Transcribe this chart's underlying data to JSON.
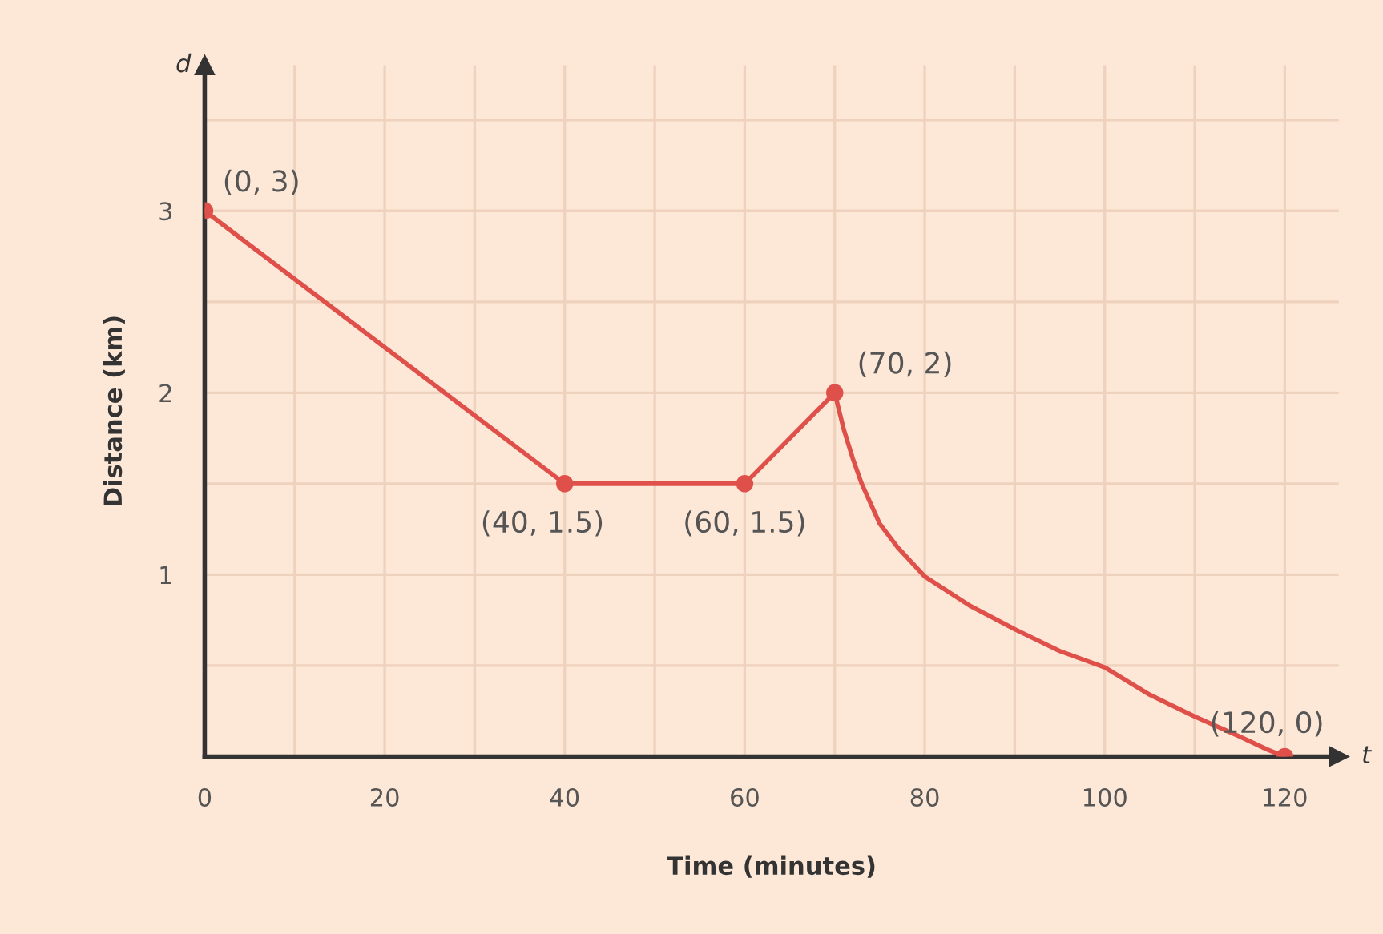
{
  "chart_data": {
    "type": "line",
    "xlabel": "Time (minutes)",
    "ylabel": "Distance (km)",
    "x": [
      0,
      40,
      60,
      70,
      71,
      72,
      73,
      75,
      77,
      80,
      85,
      90,
      95,
      100,
      105,
      110,
      115,
      118,
      120
    ],
    "series": [
      {
        "color": "#e0504a",
        "values": [
          3,
          1.5,
          1.5,
          2,
          1.8,
          1.64,
          1.5,
          1.28,
          1.15,
          0.99,
          0.83,
          0.7,
          0.58,
          0.49,
          0.34,
          0.22,
          0.11,
          0.04,
          0
        ],
        "marker": "none"
      },
      {
        "type": "scatter",
        "color": "#e0504a",
        "x": [
          0,
          40,
          60,
          70,
          120
        ],
        "values": [
          3,
          1.5,
          1.5,
          2,
          0
        ],
        "marker": "circle"
      }
    ],
    "xlim": [
      0,
      126
    ],
    "ylim": [
      0,
      3.8
    ],
    "xticks": [
      0,
      {
        "value": 10,
        "label": null
      },
      20,
      {
        "value": 30,
        "label": null
      },
      40,
      {
        "value": 50,
        "label": null
      },
      60,
      {
        "value": 70,
        "label": null
      },
      80,
      {
        "value": 90,
        "label": null
      },
      100,
      {
        "value": 110,
        "label": null
      },
      120
    ],
    "yticks": [
      {
        "value": 0,
        "label": null
      },
      {
        "value": 0.5,
        "label": null
      },
      1,
      {
        "value": 1.5,
        "label": null
      },
      2,
      {
        "value": 2.5,
        "label": null
      },
      3,
      {
        "value": 3.5,
        "label": null
      }
    ],
    "grid": true,
    "annotations": [
      "d",
      "t",
      {
        "text": "(0, 3)",
        "x": 0,
        "y": 3
      },
      {
        "text": "(40, 1.5)",
        "x": 40,
        "y": 1.5
      },
      {
        "text": "(60, 1.5)",
        "x": 60,
        "y": 1.5
      },
      {
        "text": "(70, 2)",
        "x": 70,
        "y": 2
      },
      {
        "text": "(120, 0)",
        "x": 120,
        "y": 0
      }
    ]
  }
}
